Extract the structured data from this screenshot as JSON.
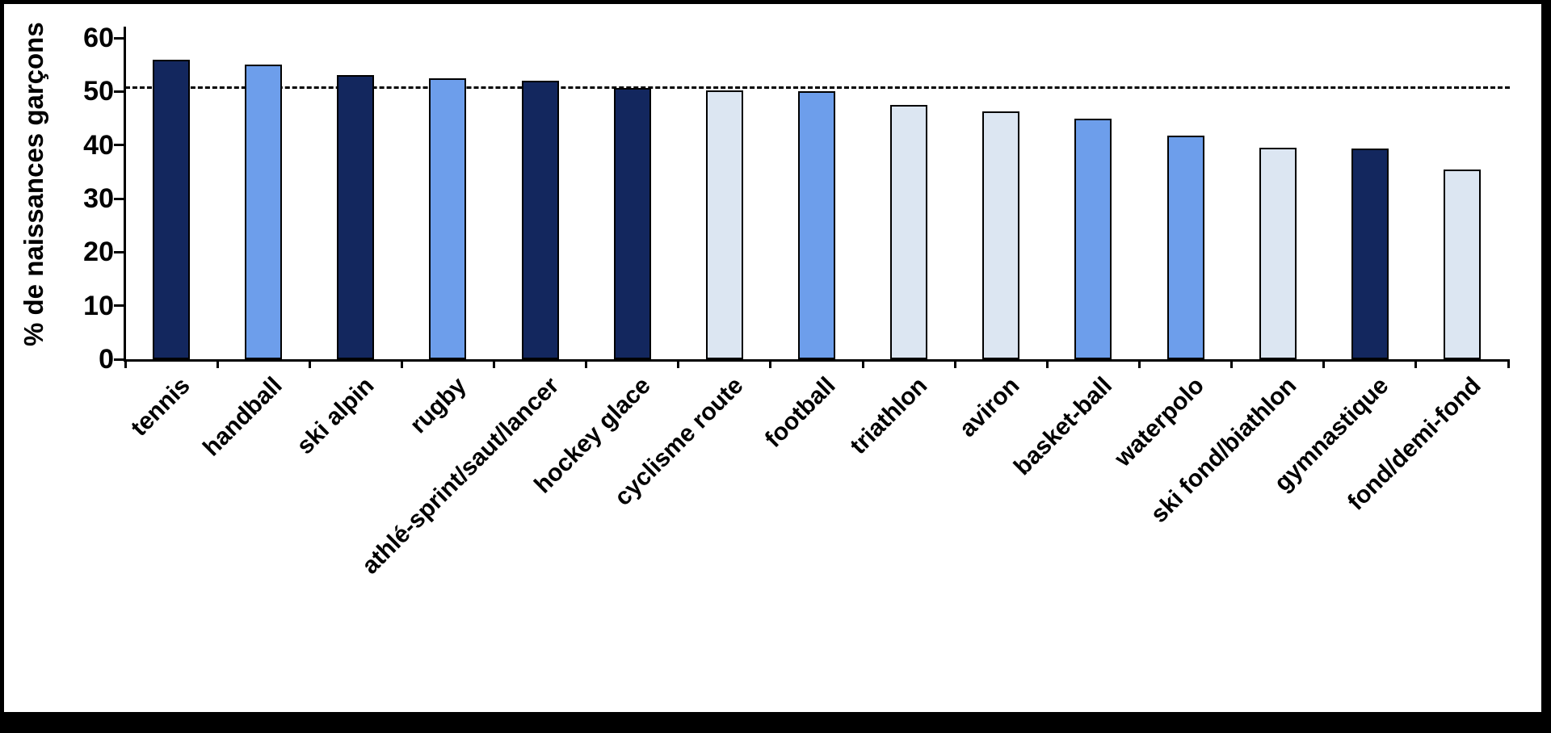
{
  "chart_data": {
    "type": "bar",
    "title": "",
    "ylabel": "% de naissances garçons",
    "xlabel": "",
    "ylim": [
      0,
      60
    ],
    "yticks": [
      0,
      10,
      20,
      30,
      40,
      50,
      60
    ],
    "grid": false,
    "legend": null,
    "reference_line": {
      "value": 51,
      "style": "dashed",
      "color": "#000000"
    },
    "categories": [
      "tennis",
      "handball",
      "ski alpin",
      "rugby",
      "athlé-sprint/saut/lancer",
      "hockey glace",
      "cyclisme route",
      "football",
      "triathlon",
      "aviron",
      "basket-ball",
      "waterpolo",
      "ski fond/biathlon",
      "gymnastique",
      "fond/demi-fond"
    ],
    "values": [
      56,
      55,
      53,
      52.5,
      52,
      50.7,
      50.2,
      50,
      47.5,
      46.3,
      45,
      41.7,
      39.5,
      39.3,
      35.4
    ],
    "bar_colors": [
      "#13275E",
      "#6D9EEB",
      "#13275E",
      "#6D9EEB",
      "#13275E",
      "#13275E",
      "#DCE6F2",
      "#6D9EEB",
      "#DCE6F2",
      "#DCE6F2",
      "#6D9EEB",
      "#6D9EEB",
      "#DCE6F2",
      "#13275E",
      "#DCE6F2"
    ],
    "bar_border_color": "#000000",
    "axis_color": "#000000",
    "background": "#FFFFFF"
  }
}
